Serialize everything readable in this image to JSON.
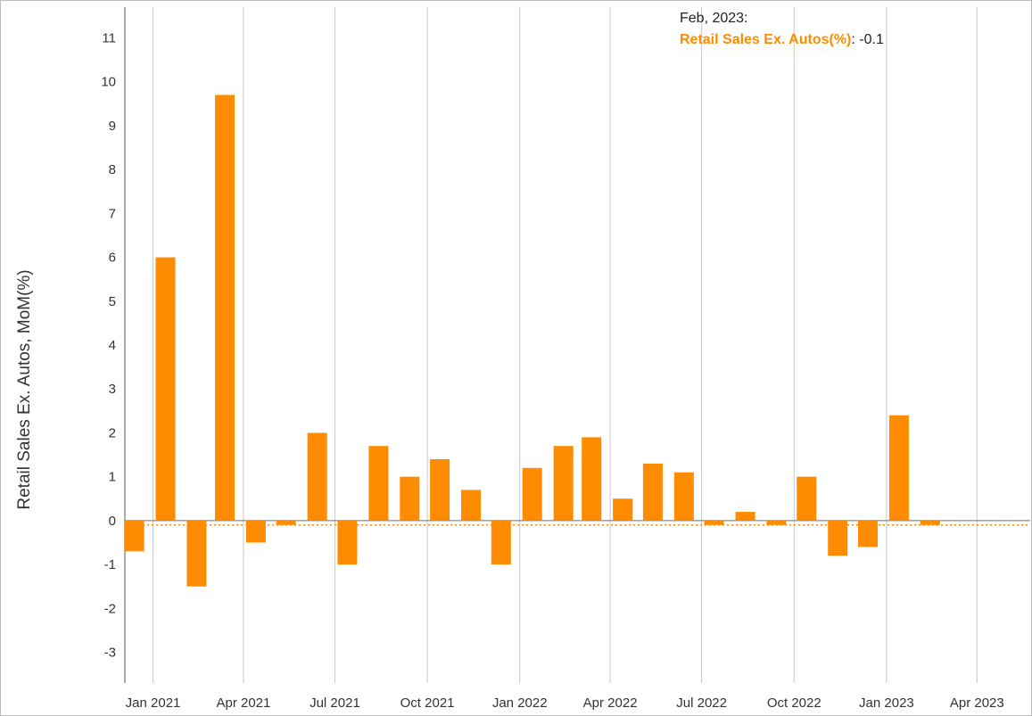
{
  "chart_data": {
    "type": "bar",
    "title": "",
    "xlabel": "",
    "ylabel": "Retail Sales Ex. Autos, MoM(%)",
    "ylim": [
      -3.7,
      11.7
    ],
    "yticks": [
      -3,
      -2,
      -1,
      0,
      1,
      2,
      3,
      4,
      5,
      6,
      7,
      8,
      9,
      10,
      11
    ],
    "xlim": [
      "2020-12-04",
      "2023-05-24"
    ],
    "xticks": [
      {
        "date": "2021-01-01",
        "label": "Jan 2021"
      },
      {
        "date": "2021-04-01",
        "label": "Apr 2021"
      },
      {
        "date": "2021-07-01",
        "label": "Jul 2021"
      },
      {
        "date": "2021-10-01",
        "label": "Oct 2021"
      },
      {
        "date": "2022-01-01",
        "label": "Jan 2022"
      },
      {
        "date": "2022-04-01",
        "label": "Apr 2022"
      },
      {
        "date": "2022-07-01",
        "label": "Jul 2022"
      },
      {
        "date": "2022-10-01",
        "label": "Oct 2022"
      },
      {
        "date": "2023-01-01",
        "label": "Jan 2023"
      },
      {
        "date": "2023-04-01",
        "label": "Apr 2023"
      }
    ],
    "series": [
      {
        "name": "Retail Sales Ex. Autos(%)",
        "color": "#ff8c00",
        "points": [
          {
            "date": "2020-12-01",
            "value": -0.7
          },
          {
            "date": "2021-01-01",
            "value": 6.0
          },
          {
            "date": "2021-02-01",
            "value": -1.5
          },
          {
            "date": "2021-03-01",
            "value": 9.7
          },
          {
            "date": "2021-04-01",
            "value": -0.5
          },
          {
            "date": "2021-05-01",
            "value": -0.1
          },
          {
            "date": "2021-06-01",
            "value": 2.0
          },
          {
            "date": "2021-07-01",
            "value": -1.0
          },
          {
            "date": "2021-08-01",
            "value": 1.7
          },
          {
            "date": "2021-09-01",
            "value": 1.0
          },
          {
            "date": "2021-10-01",
            "value": 1.4
          },
          {
            "date": "2021-11-01",
            "value": 0.7
          },
          {
            "date": "2021-12-01",
            "value": -1.0
          },
          {
            "date": "2022-01-01",
            "value": 1.2
          },
          {
            "date": "2022-02-01",
            "value": 1.7
          },
          {
            "date": "2022-03-01",
            "value": 1.9
          },
          {
            "date": "2022-04-01",
            "value": 0.5
          },
          {
            "date": "2022-05-01",
            "value": 1.3
          },
          {
            "date": "2022-06-01",
            "value": 1.1
          },
          {
            "date": "2022-07-01",
            "value": -0.1
          },
          {
            "date": "2022-08-01",
            "value": 0.2
          },
          {
            "date": "2022-09-01",
            "value": -0.1
          },
          {
            "date": "2022-10-01",
            "value": 1.0
          },
          {
            "date": "2022-11-01",
            "value": -0.8
          },
          {
            "date": "2022-12-01",
            "value": -0.6
          },
          {
            "date": "2023-01-01",
            "value": 2.4
          },
          {
            "date": "2023-02-01",
            "value": -0.1
          }
        ]
      }
    ],
    "reference_line": {
      "value": -0.1,
      "style": "dotted",
      "color": "#ff8c00"
    },
    "grid": {
      "x": true,
      "y": false
    },
    "legend": "none"
  },
  "tooltip": {
    "date": "Feb, 2023:",
    "series_label": "Retail Sales Ex. Autos(%)",
    "separator": ":",
    "value": "-0.1"
  }
}
